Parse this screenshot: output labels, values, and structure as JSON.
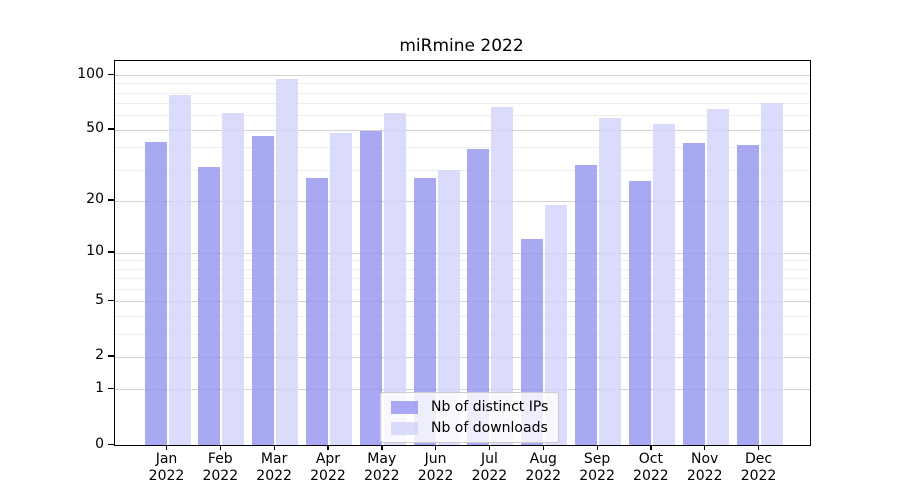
{
  "title": "miRmine 2022",
  "chart_data": {
    "type": "bar",
    "title": "miRmine 2022",
    "categories": [
      "Jan 2022",
      "Feb 2022",
      "Mar 2022",
      "Apr 2022",
      "May 2022",
      "Jun 2022",
      "Jul 2022",
      "Aug 2022",
      "Sep 2022",
      "Oct 2022",
      "Nov 2022",
      "Dec 2022"
    ],
    "months": [
      "Jan",
      "Feb",
      "Mar",
      "Apr",
      "May",
      "Jun",
      "Jul",
      "Aug",
      "Sep",
      "Oct",
      "Nov",
      "Dec"
    ],
    "year": "2022",
    "series": [
      {
        "name": "Nb of distinct IPs",
        "color": "#9696f0",
        "values": [
          43,
          31,
          46,
          27,
          49,
          27,
          39,
          12,
          32,
          26,
          42,
          41
        ]
      },
      {
        "name": "Nb of downloads",
        "color": "#d3d3fa",
        "values": [
          78,
          62,
          95,
          48,
          62,
          30,
          67,
          19,
          58,
          54,
          65,
          70
        ]
      }
    ],
    "yscale": "log1p",
    "ylim": [
      0,
      119
    ],
    "yticks": [
      100,
      50,
      20,
      10,
      5,
      2,
      1,
      0
    ],
    "minor_gridlines": [
      3,
      4,
      6,
      7,
      8,
      9,
      30,
      40,
      60,
      70,
      80,
      90
    ],
    "grid": true,
    "legend_position": "lower center",
    "xlabel": "",
    "ylabel": ""
  },
  "colors": {
    "ips_bar": "#9696f0",
    "downloads_bar": "#d3d3fa",
    "grid_major": "#d2d2d2",
    "grid_minor": "#ededed",
    "spine": "#000000",
    "legend_border": "#cccccc"
  }
}
